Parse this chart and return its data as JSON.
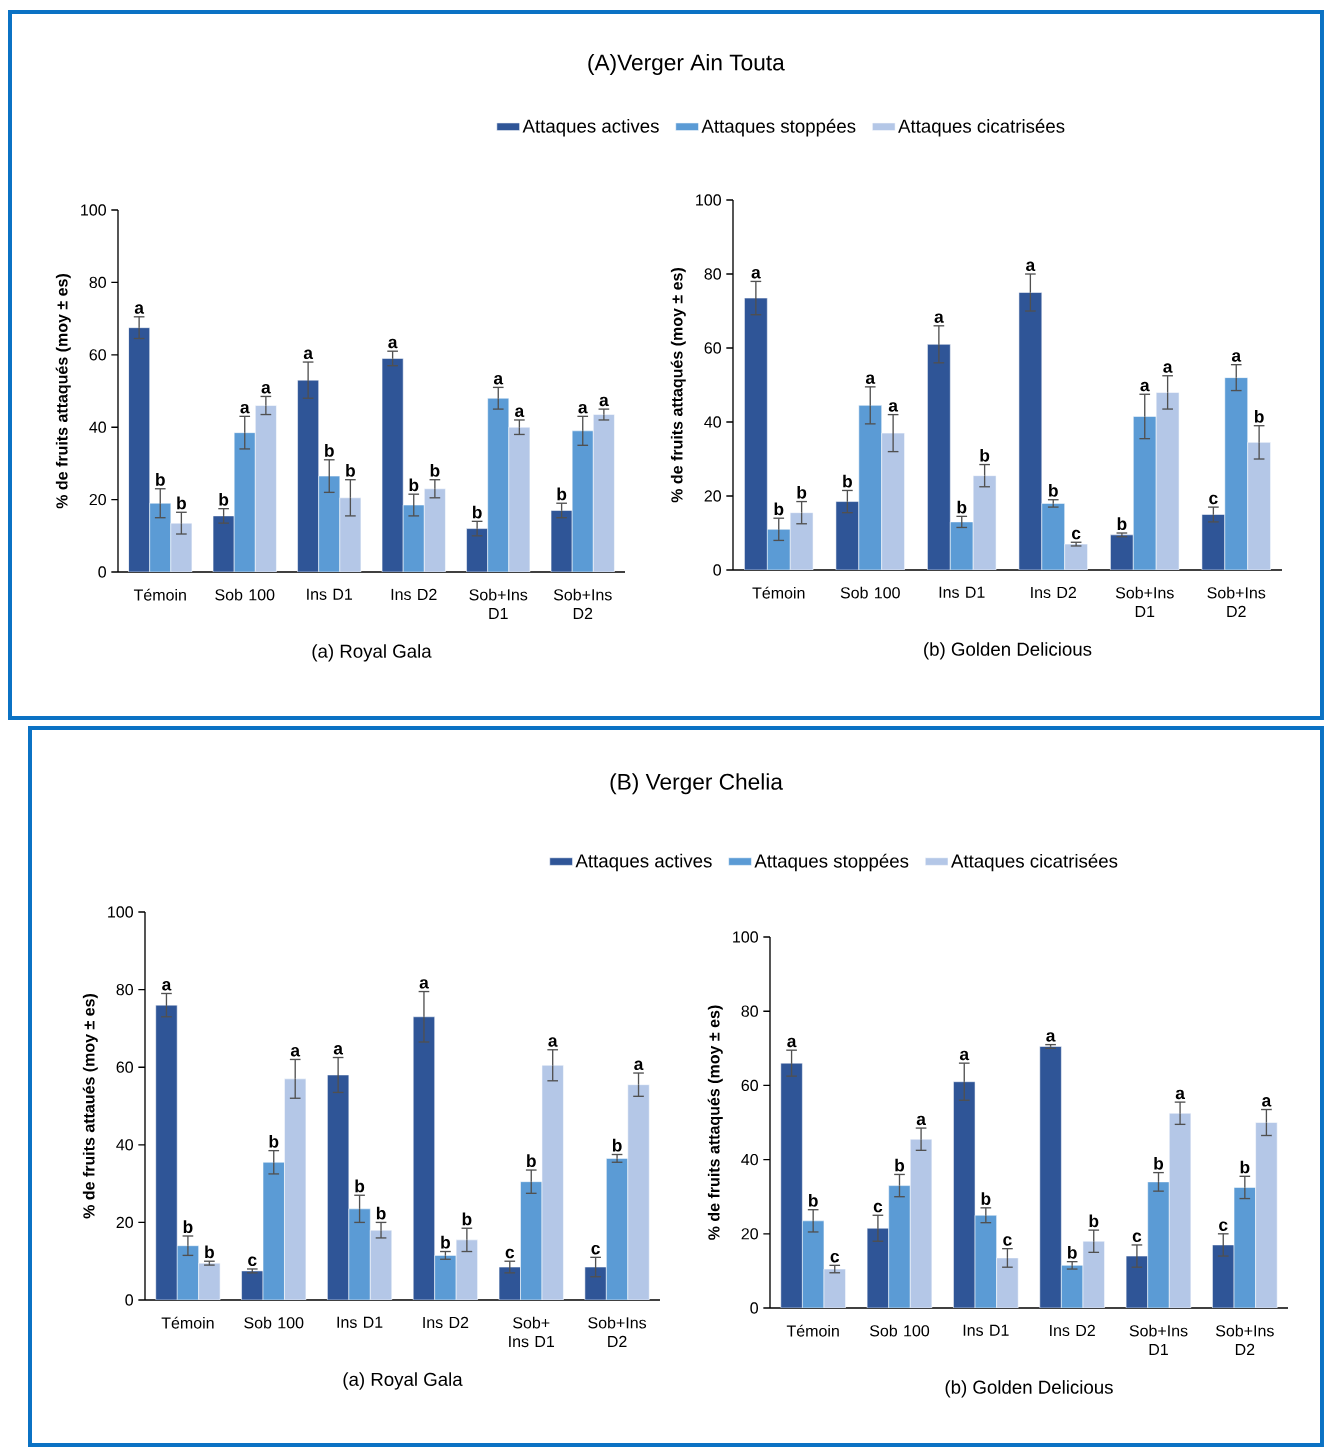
{
  "chart_data": [
    {
      "type": "bar",
      "title": "(A)Verger Ain Touta",
      "xlabel": "(a) Royal Gala",
      "ylabel": "% de fruits attaqués (moy ± es)",
      "categories": [
        "Témoin",
        "Sob 100",
        "Ins D1",
        "Ins D2",
        "Sob+Ins D1",
        "Sob+Ins D2"
      ],
      "ylim": [
        0,
        100
      ],
      "yticks": [
        0,
        20,
        40,
        60,
        80,
        100
      ],
      "legend": "top",
      "series": [
        {
          "name": "Attaques actives",
          "color": "#2f5597",
          "values": [
            67.5,
            15.5,
            53,
            59,
            12,
            17
          ],
          "errors": [
            3,
            2,
            5,
            2,
            2,
            2
          ],
          "value_labels": [
            "a",
            "b",
            "a",
            "a",
            "b",
            "b"
          ]
        },
        {
          "name": "Attaques stoppées",
          "color": "#5b9bd5",
          "values": [
            19,
            38.5,
            26.5,
            18.5,
            48,
            39
          ],
          "errors": [
            4,
            4.5,
            4.5,
            3,
            3,
            4
          ],
          "value_labels": [
            "b",
            "a",
            "b",
            "b",
            "a",
            "a"
          ]
        },
        {
          "name": "Attaques cicatrisées",
          "color": "#b4c7e7",
          "values": [
            13.5,
            46,
            20.5,
            23,
            40,
            43.5
          ],
          "errors": [
            3,
            2.5,
            5,
            2.5,
            2,
            1.5
          ],
          "value_labels": [
            "b",
            "a",
            "b",
            "b",
            "a",
            "a"
          ]
        }
      ]
    },
    {
      "type": "bar",
      "xlabel": "(b) Golden Delicious",
      "ylabel": "% de fruits attaqués (moy ± es)",
      "categories": [
        "Témoin",
        "Sob 100",
        "Ins D1",
        "Ins D2",
        "Sob+Ins D1",
        "Sob+Ins D2"
      ],
      "ylim": [
        0,
        100
      ],
      "yticks": [
        0,
        20,
        40,
        60,
        80,
        100
      ],
      "series": [
        {
          "color": "#2f5597",
          "values": [
            73.5,
            18.5,
            61,
            75,
            9.5,
            15
          ],
          "errors": [
            4.5,
            3,
            5,
            5,
            0.5,
            2
          ],
          "value_labels": [
            "a",
            "b",
            "a",
            "a",
            "b",
            "c"
          ]
        },
        {
          "color": "#5b9bd5",
          "values": [
            11,
            44.5,
            13,
            18,
            41.5,
            52
          ],
          "errors": [
            3,
            5,
            1.5,
            1,
            6,
            3.5
          ],
          "value_labels": [
            "b",
            "a",
            "b",
            "b",
            "a",
            "a"
          ]
        },
        {
          "color": "#b4c7e7",
          "values": [
            15.5,
            37,
            25.5,
            7,
            48,
            34.5
          ],
          "errors": [
            3,
            5,
            3,
            0.5,
            4.5,
            4.5
          ],
          "value_labels": [
            "b",
            "a",
            "b",
            "c",
            "a",
            "b"
          ]
        }
      ]
    },
    {
      "type": "bar",
      "title": "(B) Verger Chelia",
      "xlabel": "(a) Royal Gala",
      "ylabel": "% de fruits attaués (moy ± es)",
      "categories": [
        "Témoin",
        "Sob 100",
        "Ins D1",
        "Ins D2",
        "Sob+ Ins D1",
        "Sob+Ins D2"
      ],
      "ylim": [
        0,
        100
      ],
      "yticks": [
        0,
        20,
        40,
        60,
        80,
        100
      ],
      "legend": "top",
      "series": [
        {
          "name": "Attaques actives",
          "color": "#2f5597",
          "values": [
            76,
            7.5,
            58,
            73,
            8.5,
            8.5
          ],
          "errors": [
            3,
            0.5,
            4.5,
            6.5,
            1.5,
            2.5
          ],
          "value_labels": [
            "a",
            "c",
            "a",
            "a",
            "c",
            "c"
          ]
        },
        {
          "name": "Attaques stoppées",
          "color": "#5b9bd5",
          "values": [
            14,
            35.5,
            23.5,
            11.5,
            30.5,
            36.5
          ],
          "errors": [
            2.5,
            3,
            3.5,
            1,
            3,
            1
          ],
          "value_labels": [
            "b",
            "b",
            "b",
            "b",
            "b",
            "b"
          ]
        },
        {
          "name": "Attaques cicatrisées",
          "color": "#b4c7e7",
          "values": [
            9.5,
            57,
            18,
            15.5,
            60.5,
            55.5
          ],
          "errors": [
            0.5,
            5,
            2,
            3,
            4,
            3
          ],
          "value_labels": [
            "b",
            "a",
            "b",
            "b",
            "a",
            "a"
          ]
        }
      ]
    },
    {
      "type": "bar",
      "xlabel": "(b) Golden Delicious",
      "ylabel": "% de fruits attaqués (moy ± es)",
      "categories": [
        "Témoin",
        "Sob 100",
        "Ins D1",
        "Ins D2",
        "Sob+Ins D1",
        "Sob+Ins D2"
      ],
      "ylim": [
        0,
        100
      ],
      "yticks": [
        0,
        20,
        40,
        60,
        80,
        100
      ],
      "series": [
        {
          "color": "#2f5597",
          "values": [
            66,
            21.5,
            61,
            70.5,
            14,
            17
          ],
          "errors": [
            3.5,
            3.5,
            5,
            0.5,
            3,
            3
          ],
          "value_labels": [
            "a",
            "c",
            "a",
            "a",
            "c",
            "c"
          ]
        },
        {
          "color": "#5b9bd5",
          "values": [
            23.5,
            33,
            25,
            11.5,
            34,
            32.5
          ],
          "errors": [
            3,
            3,
            2,
            1,
            2.5,
            3
          ],
          "value_labels": [
            "b",
            "b",
            "b",
            "b",
            "b",
            "b"
          ]
        },
        {
          "color": "#b4c7e7",
          "values": [
            10.5,
            45.5,
            13.5,
            18,
            52.5,
            50
          ],
          "errors": [
            1,
            3,
            2.5,
            3,
            3,
            3.5
          ],
          "value_labels": [
            "c",
            "a",
            "c",
            "b",
            "a",
            "a"
          ]
        }
      ]
    }
  ]
}
